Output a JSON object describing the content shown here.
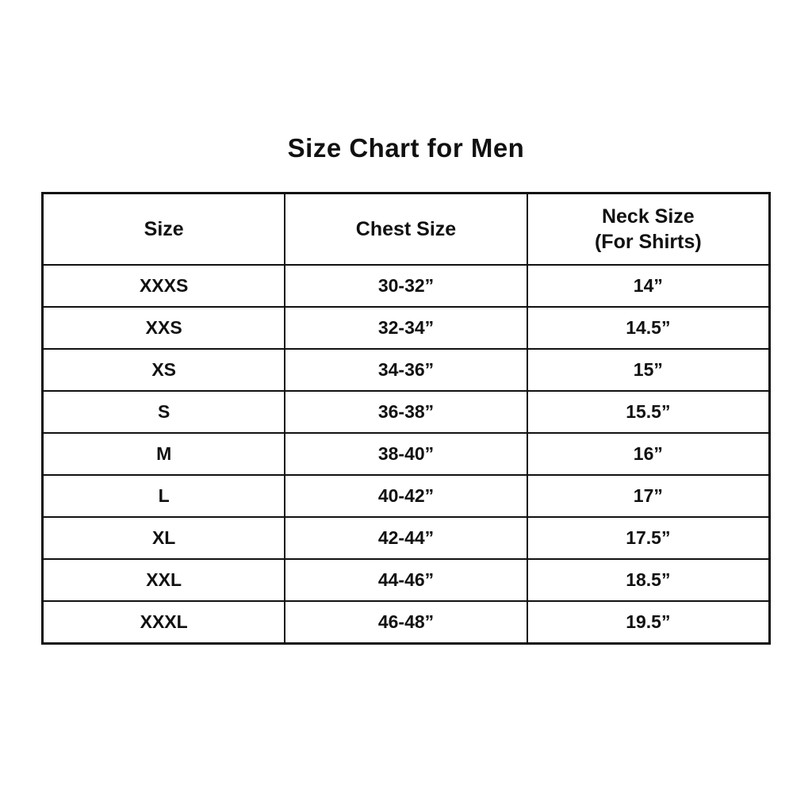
{
  "page": {
    "title": "Size Chart for Men"
  },
  "chart_data": {
    "type": "table",
    "title": "Size Chart for Men",
    "columns": [
      {
        "label": "Size",
        "sublabel": ""
      },
      {
        "label": "Chest Size",
        "sublabel": ""
      },
      {
        "label": "Neck Size",
        "sublabel": "(For Shirts)"
      }
    ],
    "rows": [
      [
        "XXXS",
        "30-32”",
        "14”"
      ],
      [
        "XXS",
        "32-34”",
        "14.5”"
      ],
      [
        "XS",
        "34-36”",
        "15”"
      ],
      [
        "S",
        "36-38”",
        "15.5”"
      ],
      [
        "M",
        "38-40”",
        "16”"
      ],
      [
        "L",
        "40-42”",
        "17”"
      ],
      [
        "XL",
        "42-44”",
        "17.5”"
      ],
      [
        "XXL",
        "44-46”",
        "18.5”"
      ],
      [
        "XXXL",
        "46-48”",
        "19.5”"
      ]
    ]
  }
}
